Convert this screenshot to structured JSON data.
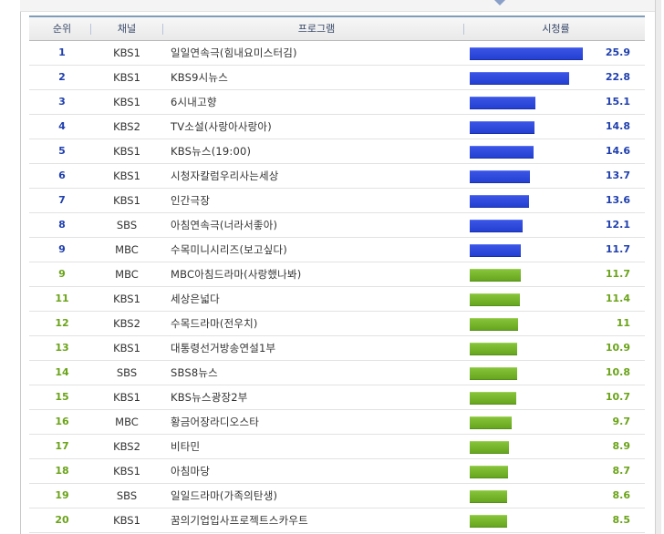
{
  "header": {
    "rank": "순위",
    "channel": "채널",
    "program": "프로그램",
    "rating": "시청률"
  },
  "colors": {
    "blue": "#2440d2",
    "green": "#6aa318"
  },
  "chart_data": {
    "type": "table",
    "columns": [
      "순위",
      "채널",
      "프로그램",
      "시청률"
    ],
    "rows": [
      {
        "rank": "1",
        "channel": "KBS1",
        "program": "일일연속극(힘내요미스터김)",
        "value": 25.9,
        "label": "25.9",
        "color": "blue"
      },
      {
        "rank": "2",
        "channel": "KBS1",
        "program": "KBS9시뉴스",
        "value": 22.8,
        "label": "22.8",
        "color": "blue"
      },
      {
        "rank": "3",
        "channel": "KBS1",
        "program": "6시내고향",
        "value": 15.1,
        "label": "15.1",
        "color": "blue"
      },
      {
        "rank": "4",
        "channel": "KBS2",
        "program": "TV소설(사랑아사랑아)",
        "value": 14.8,
        "label": "14.8",
        "color": "blue"
      },
      {
        "rank": "5",
        "channel": "KBS1",
        "program": "KBS뉴스(19:00)",
        "value": 14.6,
        "label": "14.6",
        "color": "blue"
      },
      {
        "rank": "6",
        "channel": "KBS1",
        "program": "시청자칼럼우리사는세상",
        "value": 13.7,
        "label": "13.7",
        "color": "blue"
      },
      {
        "rank": "7",
        "channel": "KBS1",
        "program": "인간극장",
        "value": 13.6,
        "label": "13.6",
        "color": "blue"
      },
      {
        "rank": "8",
        "channel": "SBS",
        "program": "아침연속극(너라서좋아)",
        "value": 12.1,
        "label": "12.1",
        "color": "blue"
      },
      {
        "rank": "9",
        "channel": "MBC",
        "program": "수목미니시리즈(보고싶다)",
        "value": 11.7,
        "label": "11.7",
        "color": "blue"
      },
      {
        "rank": "9",
        "channel": "MBC",
        "program": "MBC아침드라마(사랑했나봐)",
        "value": 11.7,
        "label": "11.7",
        "color": "green"
      },
      {
        "rank": "11",
        "channel": "KBS1",
        "program": "세상은넓다",
        "value": 11.4,
        "label": "11.4",
        "color": "green"
      },
      {
        "rank": "12",
        "channel": "KBS2",
        "program": "수목드라마(전우치)",
        "value": 11,
        "label": "11",
        "color": "green"
      },
      {
        "rank": "13",
        "channel": "KBS1",
        "program": "대통령선거방송연설1부",
        "value": 10.9,
        "label": "10.9",
        "color": "green"
      },
      {
        "rank": "14",
        "channel": "SBS",
        "program": "SBS8뉴스",
        "value": 10.8,
        "label": "10.8",
        "color": "green"
      },
      {
        "rank": "15",
        "channel": "KBS1",
        "program": "KBS뉴스광장2부",
        "value": 10.7,
        "label": "10.7",
        "color": "green"
      },
      {
        "rank": "16",
        "channel": "MBC",
        "program": "황금어장라디오스타",
        "value": 9.7,
        "label": "9.7",
        "color": "green"
      },
      {
        "rank": "17",
        "channel": "KBS2",
        "program": "비타민",
        "value": 8.9,
        "label": "8.9",
        "color": "green"
      },
      {
        "rank": "18",
        "channel": "KBS1",
        "program": "아침마당",
        "value": 8.7,
        "label": "8.7",
        "color": "green"
      },
      {
        "rank": "19",
        "channel": "SBS",
        "program": "일일드라마(가족의탄생)",
        "value": 8.6,
        "label": "8.6",
        "color": "green"
      },
      {
        "rank": "20",
        "channel": "KBS1",
        "program": "꿈의기업입사프로젝트스카우트",
        "value": 8.5,
        "label": "8.5",
        "color": "green"
      }
    ]
  }
}
